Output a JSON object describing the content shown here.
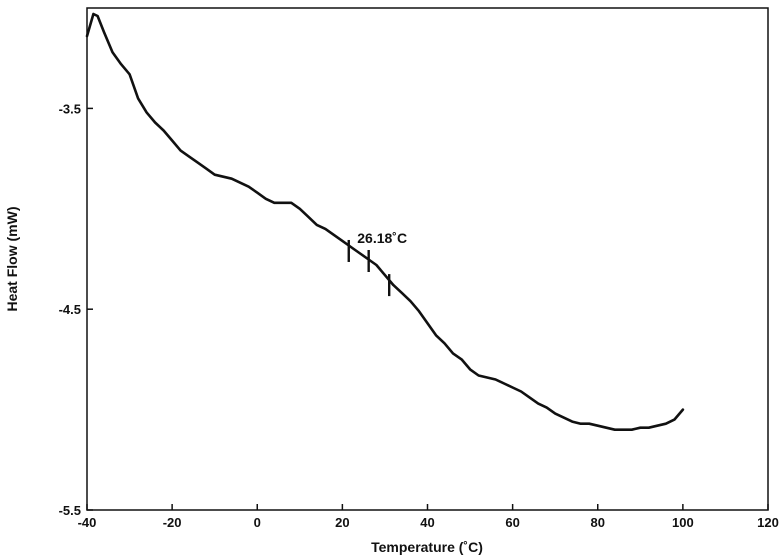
{
  "chart_data": {
    "type": "line",
    "title": "",
    "xlabel": "Temperature (˚C)",
    "ylabel": "Heat Flow (mW)",
    "xlim": [
      -40,
      120
    ],
    "ylim": [
      -5.5,
      -3.0
    ],
    "x_ticks": [
      -40,
      -20,
      0,
      20,
      40,
      60,
      80,
      100,
      120
    ],
    "x_tick_labels": [
      "-40",
      "-20",
      "0",
      "20",
      "40",
      "60",
      "80",
      "100",
      "120"
    ],
    "y_ticks": [
      -3.5,
      -4.5,
      -5.5
    ],
    "y_tick_labels": [
      "-3.5",
      "-4.5",
      "-5.5"
    ],
    "grid": false,
    "legend": "none",
    "line_color": "#111111",
    "series": [
      {
        "x": [
          -40,
          -38.5,
          -37.5,
          -36,
          -34,
          -32,
          -30,
          -28,
          -26,
          -24,
          -22,
          -20,
          -18,
          -16,
          -14,
          -12,
          -10,
          -8,
          -6,
          -4,
          -2,
          0,
          2,
          4,
          6,
          8,
          10,
          12,
          14,
          16,
          18,
          20,
          22,
          24,
          26,
          28,
          30,
          32,
          34,
          36,
          38,
          40,
          42,
          44,
          46,
          48,
          50,
          52,
          54,
          56,
          58,
          60,
          62,
          64,
          66,
          68,
          70,
          72,
          74,
          76,
          78,
          80,
          82,
          84,
          86,
          88,
          90,
          92,
          94,
          96,
          98,
          100
        ],
        "y": [
          -3.14,
          -3.03,
          -3.04,
          -3.12,
          -3.22,
          -3.28,
          -3.33,
          -3.45,
          -3.52,
          -3.57,
          -3.61,
          -3.66,
          -3.71,
          -3.74,
          -3.77,
          -3.8,
          -3.83,
          -3.84,
          -3.85,
          -3.87,
          -3.89,
          -3.92,
          -3.95,
          -3.97,
          -3.97,
          -3.97,
          -4.0,
          -4.04,
          -4.08,
          -4.1,
          -4.13,
          -4.16,
          -4.19,
          -4.22,
          -4.25,
          -4.28,
          -4.33,
          -4.38,
          -4.42,
          -4.46,
          -4.51,
          -4.57,
          -4.63,
          -4.67,
          -4.72,
          -4.75,
          -4.8,
          -4.83,
          -4.84,
          -4.85,
          -4.87,
          -4.89,
          -4.91,
          -4.94,
          -4.97,
          -4.99,
          -5.02,
          -5.04,
          -5.06,
          -5.07,
          -5.07,
          -5.08,
          -5.09,
          -5.1,
          -5.1,
          -5.1,
          -5.09,
          -5.09,
          -5.08,
          -5.07,
          -5.05,
          -5.0
        ]
      }
    ],
    "annotations": [
      {
        "text": "26.18˚C",
        "x": 23.5,
        "y": -4.17
      }
    ],
    "transition_markers": [
      {
        "x": 21.5,
        "y": -4.21
      },
      {
        "x": 26.18,
        "y": -4.26
      },
      {
        "x": 31,
        "y": -4.38
      }
    ]
  }
}
